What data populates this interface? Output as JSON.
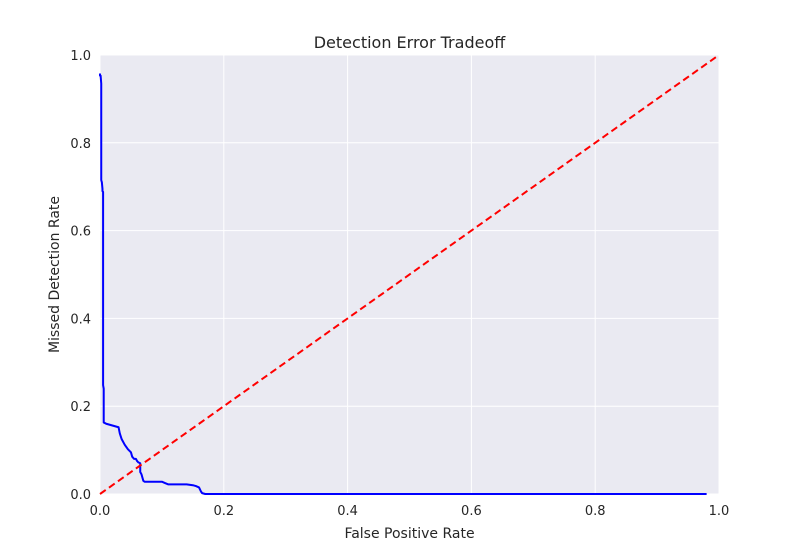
{
  "chart_data": {
    "type": "line",
    "title": "Detection Error Tradeoff",
    "xlabel": "False Positive Rate",
    "ylabel": "Missed Detection Rate",
    "xlim": [
      0.0,
      1.0
    ],
    "ylim": [
      0.0,
      1.0
    ],
    "xticks": [
      0.0,
      0.2,
      0.4,
      0.6,
      0.8,
      1.0
    ],
    "yticks": [
      0.0,
      0.2,
      0.4,
      0.6,
      0.8,
      1.0
    ],
    "xtick_labels": [
      "0.0",
      "0.2",
      "0.4",
      "0.6",
      "0.8",
      "1.0"
    ],
    "ytick_labels": [
      "0.0",
      "0.2",
      "0.4",
      "0.6",
      "0.8",
      "1.0"
    ],
    "grid": true,
    "background": "#EAEAF2",
    "series": [
      {
        "color": "#0000FF",
        "style": "solid",
        "x": [
          0.0,
          0.0,
          0.001,
          0.002,
          0.002,
          0.002,
          0.003,
          0.004,
          0.004,
          0.005,
          0.005,
          0.005,
          0.006,
          0.006,
          0.01,
          0.02,
          0.03,
          0.032,
          0.035,
          0.04,
          0.045,
          0.05,
          0.052,
          0.055,
          0.058,
          0.06,
          0.062,
          0.065,
          0.065,
          0.067,
          0.07,
          0.072,
          0.08,
          0.09,
          0.1,
          0.105,
          0.11,
          0.12,
          0.13,
          0.14,
          0.15,
          0.155,
          0.16,
          0.163,
          0.165,
          0.17,
          0.18,
          0.3,
          0.5,
          0.7,
          0.9,
          0.98
        ],
        "y": [
          0.958,
          0.953,
          0.953,
          0.935,
          0.925,
          0.715,
          0.71,
          0.695,
          0.69,
          0.688,
          0.28,
          0.248,
          0.24,
          0.163,
          0.16,
          0.156,
          0.152,
          0.138,
          0.125,
          0.112,
          0.102,
          0.095,
          0.085,
          0.08,
          0.08,
          0.075,
          0.072,
          0.07,
          0.05,
          0.045,
          0.03,
          0.028,
          0.028,
          0.028,
          0.028,
          0.025,
          0.022,
          0.022,
          0.022,
          0.022,
          0.02,
          0.018,
          0.015,
          0.006,
          0.002,
          0.0,
          0.0,
          0.0,
          0.0,
          0.0,
          0.0,
          0.0
        ]
      },
      {
        "color": "#FF0000",
        "style": "dashed",
        "x": [
          0.0,
          1.0
        ],
        "y": [
          0.0,
          1.0
        ]
      }
    ]
  }
}
